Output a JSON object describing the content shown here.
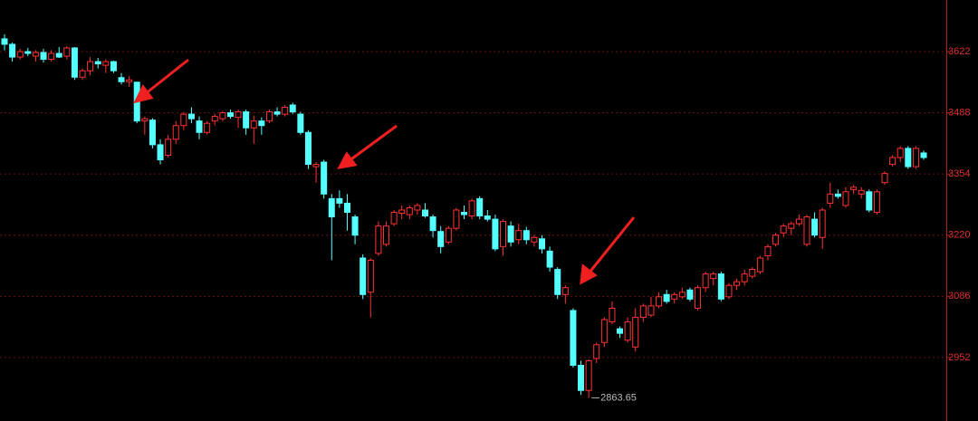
{
  "chart_data": {
    "type": "candlestick",
    "up_color": "#ff3232",
    "down_color": "#54ffff",
    "ylim": [
      2813,
      3735
    ],
    "yticks": [
      2952,
      3086,
      3220,
      3354,
      3488,
      3622
    ],
    "grid": true,
    "annotation": "2863.65",
    "open": [
      3650,
      3638,
      3610,
      3622,
      3612,
      3620,
      3605,
      3618,
      3612,
      3630,
      3566,
      3580,
      3600,
      3592,
      3600,
      3565,
      3556,
      3555,
      3470,
      3472,
      3418,
      3395,
      3430,
      3460,
      3485,
      3470,
      3445,
      3470,
      3475,
      3488,
      3478,
      3490,
      3455,
      3470,
      3470,
      3490,
      3485,
      3505,
      3485,
      3445,
      3370,
      3380,
      3300,
      3300,
      3290,
      3260,
      3170,
      3095,
      3180,
      3200,
      3245,
      3268,
      3265,
      3275,
      3275,
      3260,
      3228,
      3205,
      3235,
      3270,
      3262,
      3300,
      3262,
      3255,
      3195,
      3240,
      3210,
      3230,
      3205,
      3212,
      3185,
      3145,
      3090,
      3055,
      2935,
      2880,
      2950,
      2985,
      3030,
      3015,
      2990,
      2975,
      3040,
      3045,
      3065,
      3090,
      3080,
      3085,
      3100,
      3060,
      3105,
      3125,
      3135,
      3085,
      3110,
      3118,
      3130,
      3140,
      3175,
      3200,
      3225,
      3235,
      3245,
      3200,
      3255,
      3215,
      3290,
      3310,
      3285,
      3320,
      3310,
      3315,
      3270,
      3335,
      3375,
      3390,
      3410,
      3370,
      3400
    ],
    "high": [
      3660,
      3642,
      3628,
      3630,
      3625,
      3628,
      3625,
      3632,
      3634,
      3632,
      3585,
      3610,
      3608,
      3605,
      3602,
      3575,
      3568,
      3556,
      3480,
      3476,
      3430,
      3440,
      3470,
      3490,
      3500,
      3480,
      3470,
      3485,
      3492,
      3495,
      3495,
      3495,
      3482,
      3478,
      3495,
      3500,
      3505,
      3510,
      3490,
      3450,
      3380,
      3385,
      3310,
      3318,
      3310,
      3265,
      3178,
      3170,
      3250,
      3250,
      3275,
      3285,
      3285,
      3290,
      3290,
      3265,
      3240,
      3240,
      3280,
      3285,
      3300,
      3305,
      3275,
      3265,
      3255,
      3250,
      3245,
      3238,
      3220,
      3220,
      3195,
      3150,
      3110,
      3060,
      2945,
      2948,
      2985,
      3040,
      3075,
      3020,
      3040,
      3060,
      3070,
      3085,
      3095,
      3100,
      3095,
      3105,
      3105,
      3110,
      3140,
      3140,
      3140,
      3115,
      3125,
      3145,
      3150,
      3175,
      3200,
      3225,
      3245,
      3250,
      3265,
      3265,
      3270,
      3280,
      3335,
      3320,
      3325,
      3330,
      3325,
      3320,
      3320,
      3360,
      3395,
      3415,
      3415,
      3415,
      3405
    ],
    "low": [
      3625,
      3600,
      3605,
      3612,
      3600,
      3598,
      3600,
      3608,
      3605,
      3560,
      3560,
      3570,
      3585,
      3575,
      3575,
      3550,
      3545,
      3465,
      3440,
      3410,
      3375,
      3390,
      3420,
      3450,
      3465,
      3430,
      3440,
      3460,
      3470,
      3475,
      3455,
      3440,
      3420,
      3440,
      3465,
      3480,
      3480,
      3485,
      3440,
      3365,
      3335,
      3300,
      3165,
      3280,
      3230,
      3200,
      3080,
      3040,
      3175,
      3195,
      3240,
      3255,
      3255,
      3265,
      3258,
      3215,
      3180,
      3200,
      3230,
      3255,
      3255,
      3255,
      3250,
      3185,
      3175,
      3195,
      3200,
      3200,
      3195,
      3180,
      3140,
      3080,
      3070,
      2930,
      2870,
      2863.65,
      2940,
      2975,
      3025,
      2995,
      2985,
      2965,
      3030,
      3040,
      3060,
      3070,
      3070,
      3080,
      3075,
      3055,
      3095,
      3110,
      3075,
      3080,
      3100,
      3110,
      3125,
      3135,
      3165,
      3195,
      3215,
      3220,
      3240,
      3195,
      3215,
      3190,
      3280,
      3300,
      3280,
      3310,
      3300,
      3270,
      3265,
      3330,
      3370,
      3380,
      3365,
      3365,
      3385
    ],
    "close": [
      3638,
      3610,
      3622,
      3618,
      3620,
      3605,
      3618,
      3610,
      3630,
      3566,
      3580,
      3600,
      3595,
      3600,
      3580,
      3556,
      3560,
      3470,
      3475,
      3418,
      3385,
      3430,
      3460,
      3485,
      3475,
      3445,
      3465,
      3480,
      3488,
      3480,
      3490,
      3455,
      3470,
      3460,
      3490,
      3485,
      3500,
      3490,
      3445,
      3375,
      3375,
      3310,
      3260,
      3290,
      3270,
      3220,
      3090,
      3165,
      3240,
      3240,
      3270,
      3275,
      3280,
      3285,
      3262,
      3230,
      3195,
      3235,
      3275,
      3265,
      3295,
      3262,
      3255,
      3190,
      3250,
      3205,
      3230,
      3210,
      3215,
      3190,
      3150,
      3090,
      3105,
      2935,
      2880,
      2945,
      2980,
      3035,
      3060,
      3005,
      3030,
      3040,
      3065,
      3065,
      3085,
      3075,
      3090,
      3095,
      3080,
      3105,
      3135,
      3135,
      3080,
      3110,
      3118,
      3135,
      3145,
      3170,
      3195,
      3220,
      3240,
      3245,
      3255,
      3260,
      3220,
      3275,
      3310,
      3305,
      3315,
      3325,
      3318,
      3275,
      3315,
      3355,
      3390,
      3410,
      3370,
      3410,
      3390
    ]
  }
}
